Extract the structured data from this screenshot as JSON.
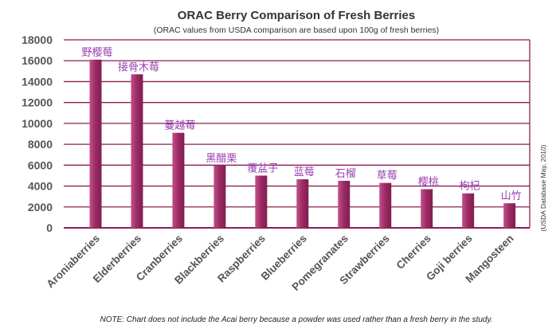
{
  "chart_data": {
    "type": "bar",
    "title": "ORAC Berry Comparison of Fresh Berries",
    "subtitle": "(ORAC values from USDA comparison are based upon 100g of fresh berries)",
    "categories": [
      "Aroniaberries",
      "Elderberries",
      "Cranberries",
      "Blackberries",
      "Raspberries",
      "Blueberries",
      "Pomegranates",
      "Strawberries",
      "Cherries",
      "Goji berries",
      "Mangosteen"
    ],
    "annotations": [
      "野樱莓",
      "接骨木莓",
      "蔓越莓",
      "黑醋栗",
      "覆盆子",
      "蓝莓",
      "石榴",
      "草莓",
      "樱桃",
      "枸杞",
      "山竹"
    ],
    "values": [
      16100,
      14700,
      9100,
      5950,
      5000,
      4650,
      4500,
      4300,
      3700,
      3300,
      2350
    ],
    "ylim": [
      0,
      18000
    ],
    "yticks": [
      "0",
      "2000",
      "4000",
      "6000",
      "8000",
      "10000",
      "12000",
      "14000",
      "16000",
      "18000"
    ],
    "grid": true,
    "side_label": "(USDA Database May, 2010)",
    "note": "NOTE: Chart does not include the Acai berry because a powder was used rather than a fresh berry in the study.",
    "colors": {
      "bar": "#9b2a63",
      "bar_light": "#b8457f",
      "grid": "#8a1f55",
      "annotation": "#9a3fb0"
    }
  }
}
